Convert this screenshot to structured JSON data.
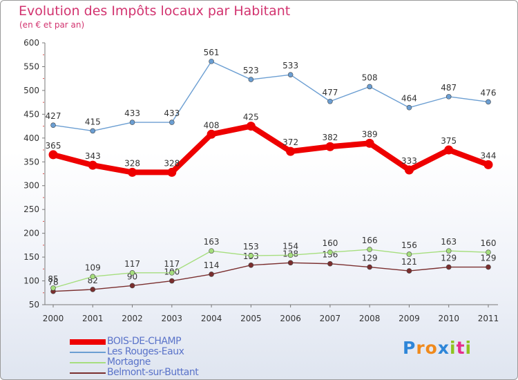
{
  "header": {
    "title": "Evolution des Impôts locaux par Habitant",
    "subtitle": "(en € et par an)"
  },
  "chart_data": {
    "type": "line",
    "title": "Evolution des Impôts locaux par Habitant",
    "subtitle": "(en € et par an)",
    "xlabel": "",
    "ylabel": "",
    "categories": [
      "2000",
      "2001",
      "2002",
      "2003",
      "2004",
      "2005",
      "2006",
      "2007",
      "2008",
      "2009",
      "2010",
      "2011"
    ],
    "ylim": [
      50,
      600
    ],
    "yticks": [
      50,
      100,
      150,
      200,
      250,
      300,
      350,
      400,
      450,
      500,
      550,
      600
    ],
    "grid": false,
    "legend_position": "bottom-left",
    "series": [
      {
        "name": "BOIS-DE-CHAMP",
        "color": "#ee0000",
        "values": [
          365,
          343,
          328,
          328,
          408,
          425,
          372,
          382,
          389,
          333,
          375,
          344
        ]
      },
      {
        "name": "Les Rouges-Eaux",
        "color": "#6b9ed2",
        "values": [
          427,
          415,
          433,
          433,
          561,
          523,
          533,
          477,
          508,
          464,
          487,
          476
        ]
      },
      {
        "name": "Mortagne",
        "color": "#a6de7e",
        "values": [
          85,
          109,
          117,
          117,
          163,
          153,
          154,
          160,
          166,
          156,
          163,
          160
        ]
      },
      {
        "name": "Belmont-sur-Buttant",
        "color": "#7a2e2e",
        "values": [
          78,
          82,
          90,
          100,
          114,
          133,
          138,
          136,
          129,
          121,
          129,
          129
        ]
      }
    ]
  },
  "logo": {
    "letters": [
      "P",
      "r",
      "o",
      "x",
      "i",
      "t",
      "i"
    ],
    "colors": [
      "#2e86d8",
      "#f08a1c",
      "#f08a1c",
      "#2e86d8",
      "#8fc31f",
      "#e62e8b",
      "#8fc31f"
    ]
  }
}
